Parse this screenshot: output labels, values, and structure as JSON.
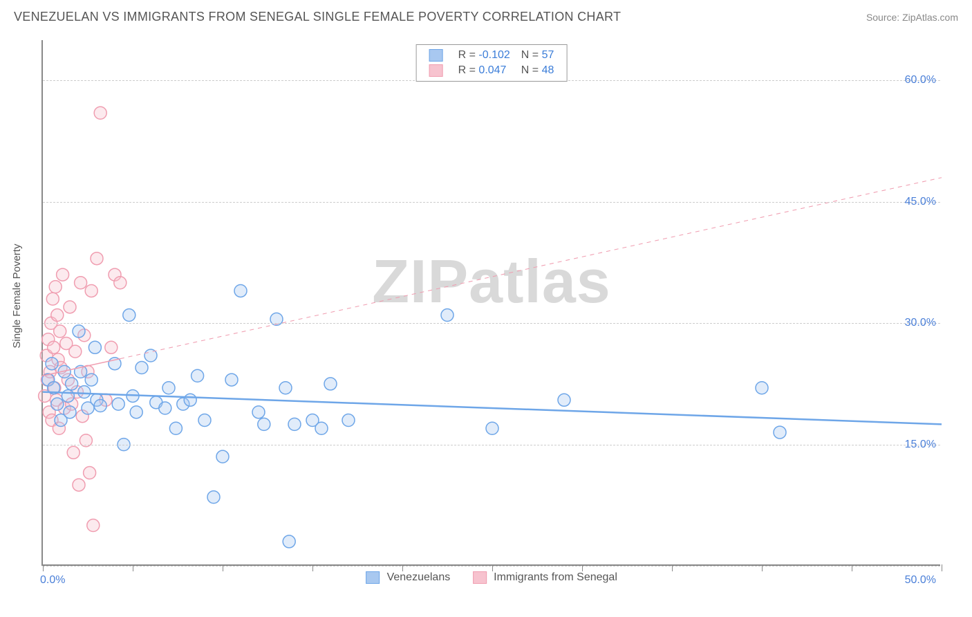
{
  "header": {
    "title": "VENEZUELAN VS IMMIGRANTS FROM SENEGAL SINGLE FEMALE POVERTY CORRELATION CHART",
    "source": "Source: ZipAtlas.com"
  },
  "chart": {
    "type": "scatter",
    "ylabel": "Single Female Poverty",
    "watermark": "ZIPatlas",
    "xlim": [
      0,
      50
    ],
    "ylim": [
      0,
      65
    ],
    "xticks": [
      0,
      5,
      10,
      15,
      20,
      25,
      30,
      35,
      40,
      45,
      50
    ],
    "xtick_labels": {
      "start": "0.0%",
      "end": "50.0%"
    },
    "yticks_labeled": [
      15,
      30,
      45,
      60
    ],
    "ytick_labels": [
      "15.0%",
      "30.0%",
      "45.0%",
      "60.0%"
    ],
    "ygrid_at": [
      0,
      15,
      30,
      45,
      60
    ],
    "grid_color": "#cccccc",
    "axis_color": "#888888",
    "background_color": "#ffffff",
    "marker_radius": 9,
    "marker_stroke_width": 1.5,
    "marker_fill_opacity": 0.35,
    "series": [
      {
        "name": "Venezuelans",
        "color_stroke": "#6ea6e8",
        "color_fill": "#a8c8f0",
        "r": -0.102,
        "n": 57,
        "trend": {
          "x1": 0,
          "y1": 21.5,
          "x2": 50,
          "y2": 17.5,
          "stroke_width": 2.5,
          "solid_until_x": 50
        },
        "points": [
          [
            0.3,
            23
          ],
          [
            0.5,
            25
          ],
          [
            0.6,
            22
          ],
          [
            0.8,
            20
          ],
          [
            1.0,
            18
          ],
          [
            1.2,
            24
          ],
          [
            1.4,
            21
          ],
          [
            1.5,
            19
          ],
          [
            1.6,
            22.5
          ],
          [
            2.0,
            29
          ],
          [
            2.1,
            24
          ],
          [
            2.3,
            21.5
          ],
          [
            2.5,
            19.5
          ],
          [
            2.7,
            23
          ],
          [
            2.9,
            27
          ],
          [
            3.0,
            20.5
          ],
          [
            3.2,
            19.8
          ],
          [
            4.0,
            25
          ],
          [
            4.2,
            20
          ],
          [
            4.5,
            15
          ],
          [
            4.8,
            31
          ],
          [
            5.0,
            21
          ],
          [
            5.2,
            19
          ],
          [
            5.5,
            24.5
          ],
          [
            6.0,
            26
          ],
          [
            6.3,
            20.2
          ],
          [
            6.8,
            19.5
          ],
          [
            7.0,
            22
          ],
          [
            7.4,
            17
          ],
          [
            7.8,
            20
          ],
          [
            8.2,
            20.5
          ],
          [
            8.6,
            23.5
          ],
          [
            9.0,
            18
          ],
          [
            9.5,
            8.5
          ],
          [
            10.0,
            13.5
          ],
          [
            10.5,
            23
          ],
          [
            11.0,
            34
          ],
          [
            12.0,
            19
          ],
          [
            12.3,
            17.5
          ],
          [
            13.0,
            30.5
          ],
          [
            13.5,
            22
          ],
          [
            13.7,
            3
          ],
          [
            14.0,
            17.5
          ],
          [
            15.0,
            18
          ],
          [
            15.5,
            17
          ],
          [
            16.0,
            22.5
          ],
          [
            17.0,
            18
          ],
          [
            22.5,
            31
          ],
          [
            25.0,
            17
          ],
          [
            29.0,
            20.5
          ],
          [
            40.0,
            22
          ],
          [
            41.0,
            16.5
          ]
        ]
      },
      {
        "name": "Immigrants from Senegal",
        "color_stroke": "#f09db0",
        "color_fill": "#f7c3cf",
        "r": 0.047,
        "n": 48,
        "trend": {
          "x1": 0,
          "y1": 23.5,
          "x2": 50,
          "y2": 48,
          "stroke_width": 1.5,
          "solid_until_x": 4.3
        },
        "points": [
          [
            0.1,
            21
          ],
          [
            0.2,
            26
          ],
          [
            0.25,
            23
          ],
          [
            0.3,
            28
          ],
          [
            0.35,
            19
          ],
          [
            0.4,
            24
          ],
          [
            0.45,
            30
          ],
          [
            0.5,
            18
          ],
          [
            0.55,
            33
          ],
          [
            0.6,
            27
          ],
          [
            0.65,
            22
          ],
          [
            0.7,
            34.5
          ],
          [
            0.75,
            20.5
          ],
          [
            0.8,
            31
          ],
          [
            0.85,
            25.5
          ],
          [
            0.9,
            17
          ],
          [
            0.95,
            29
          ],
          [
            1.0,
            24.5
          ],
          [
            1.1,
            36
          ],
          [
            1.2,
            19.5
          ],
          [
            1.3,
            27.5
          ],
          [
            1.4,
            23
          ],
          [
            1.5,
            32
          ],
          [
            1.6,
            20
          ],
          [
            1.7,
            14
          ],
          [
            1.8,
            26.5
          ],
          [
            1.9,
            21.5
          ],
          [
            2.0,
            10
          ],
          [
            2.1,
            35
          ],
          [
            2.2,
            18.5
          ],
          [
            2.3,
            28.5
          ],
          [
            2.4,
            15.5
          ],
          [
            2.5,
            24
          ],
          [
            2.6,
            11.5
          ],
          [
            2.7,
            34
          ],
          [
            2.8,
            5
          ],
          [
            3.0,
            38
          ],
          [
            3.2,
            56
          ],
          [
            3.5,
            20.5
          ],
          [
            3.8,
            27
          ],
          [
            4.0,
            36
          ],
          [
            4.3,
            35
          ]
        ]
      }
    ],
    "legend_top": {
      "columns": [
        "swatch",
        "R",
        "N"
      ],
      "label_color": "#555555",
      "value_color": "#3b7dd8"
    },
    "legend_bottom": {
      "items": [
        "Venezuelans",
        "Immigrants from Senegal"
      ]
    }
  }
}
